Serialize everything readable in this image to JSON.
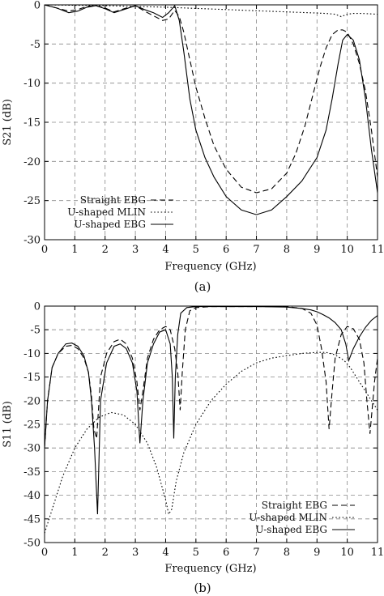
{
  "chart_data": [
    {
      "type": "line",
      "caption": "(a)",
      "xlabel": "Frequency (GHz)",
      "ylabel": "S21 (dB)",
      "xlim": [
        0,
        11
      ],
      "ylim": [
        -30,
        0
      ],
      "xticks": [
        0,
        1,
        2,
        3,
        4,
        5,
        6,
        7,
        8,
        9,
        10,
        11
      ],
      "xtick_labels": [
        "0",
        "1",
        "2",
        "3",
        "4",
        "5",
        "6",
        "7",
        "8",
        "9",
        "10",
        "11"
      ],
      "yticks": [
        0,
        -5,
        -10,
        -15,
        -20,
        -25,
        -30
      ],
      "ytick_labels": [
        "0",
        "-5",
        "-10",
        "-15",
        "-20",
        "-25",
        "-30"
      ],
      "grid": true,
      "legend_position": "bottom-left",
      "series": [
        {
          "name": "Straight EBG",
          "line_style": "dashed",
          "x": [
            0,
            0.4,
            0.8,
            1.1,
            1.4,
            1.7,
            2.0,
            2.3,
            2.7,
            3.0,
            3.3,
            3.6,
            3.9,
            4.1,
            4.3,
            4.45,
            4.6,
            4.8,
            5.0,
            5.3,
            5.6,
            6.0,
            6.5,
            7.0,
            7.5,
            8.0,
            8.3,
            8.6,
            8.9,
            9.1,
            9.3,
            9.5,
            9.7,
            9.85,
            10.0,
            10.2,
            10.4,
            10.6,
            10.8,
            11.0
          ],
          "y": [
            0,
            -0.4,
            -0.8,
            -0.6,
            -0.2,
            -0.1,
            -0.4,
            -0.9,
            -0.4,
            -0.1,
            -0.8,
            -1.4,
            -2.0,
            -1.8,
            -0.7,
            -1.5,
            -3.5,
            -7.0,
            -10.5,
            -14.5,
            -18.0,
            -21.0,
            -23.3,
            -24.0,
            -23.5,
            -21.5,
            -19.0,
            -15.5,
            -11.0,
            -8.0,
            -5.5,
            -3.8,
            -3.2,
            -3.2,
            -3.5,
            -5.0,
            -7.5,
            -11.0,
            -16.0,
            -22.0
          ]
        },
        {
          "name": "U-shaped MLIN",
          "line_style": "dotted",
          "x": [
            0,
            1,
            2,
            3,
            4,
            5,
            6,
            7,
            8,
            9,
            9.3,
            9.6,
            9.8,
            10.0,
            10.2,
            10.5,
            11.0
          ],
          "y": [
            0,
            -0.05,
            -0.1,
            -0.2,
            -0.3,
            -0.45,
            -0.6,
            -0.75,
            -0.9,
            -1.05,
            -1.1,
            -1.2,
            -1.5,
            -1.2,
            -1.1,
            -1.1,
            -1.2
          ]
        },
        {
          "name": "U-shaped EBG",
          "line_style": "solid",
          "x": [
            0,
            0.4,
            0.8,
            1.1,
            1.4,
            1.7,
            2.0,
            2.3,
            2.7,
            3.0,
            3.3,
            3.6,
            3.9,
            4.1,
            4.3,
            4.45,
            4.6,
            4.8,
            5.0,
            5.3,
            5.6,
            6.0,
            6.5,
            7.0,
            7.5,
            8.0,
            8.5,
            9.0,
            9.3,
            9.5,
            9.7,
            9.85,
            10.0,
            10.2,
            10.4,
            10.6,
            10.8,
            11.0
          ],
          "y": [
            0,
            -0.4,
            -1.0,
            -0.8,
            -0.3,
            -0.1,
            -0.5,
            -1.0,
            -0.5,
            -0.1,
            -0.6,
            -1.0,
            -1.6,
            -1.0,
            -0.1,
            -2.0,
            -6.0,
            -12.0,
            -16.0,
            -19.5,
            -22.0,
            -24.5,
            -26.2,
            -26.8,
            -26.2,
            -24.5,
            -22.5,
            -19.5,
            -16.0,
            -12.0,
            -7.5,
            -4.5,
            -3.8,
            -4.5,
            -7.0,
            -12.0,
            -18.5,
            -24.0
          ]
        }
      ]
    },
    {
      "type": "line",
      "caption": "(b)",
      "xlabel": "Frequency (GHz)",
      "ylabel": "S11 (dB)",
      "xlim": [
        0,
        11
      ],
      "ylim": [
        -50,
        0
      ],
      "xticks": [
        0,
        1,
        2,
        3,
        4,
        5,
        6,
        7,
        8,
        9,
        10,
        11
      ],
      "xtick_labels": [
        "0",
        "1",
        "2",
        "3",
        "4",
        "5",
        "6",
        "7",
        "8",
        "9",
        "10",
        "11"
      ],
      "yticks": [
        0,
        -5,
        -10,
        -15,
        -20,
        -25,
        -30,
        -35,
        -40,
        -45,
        -50
      ],
      "ytick_labels": [
        "0",
        "-5",
        "-10",
        "-15",
        "-20",
        "-25",
        "-30",
        "-35",
        "-40",
        "-45",
        "-50"
      ],
      "grid": true,
      "legend_position": "bottom-right",
      "series": [
        {
          "name": "Straight EBG",
          "line_style": "dashed",
          "x": [
            0,
            0.1,
            0.25,
            0.45,
            0.7,
            0.9,
            1.1,
            1.3,
            1.45,
            1.55,
            1.63,
            1.72,
            1.85,
            2.05,
            2.3,
            2.5,
            2.7,
            2.9,
            3.05,
            3.15,
            3.25,
            3.4,
            3.6,
            3.8,
            4.0,
            4.15,
            4.3,
            4.4,
            4.48,
            4.55,
            4.65,
            4.8,
            5.0,
            5.5,
            6.0,
            7.0,
            8.0,
            8.5,
            8.8,
            9.0,
            9.15,
            9.3,
            9.4,
            9.5,
            9.6,
            9.8,
            10.0,
            10.2,
            10.4,
            10.55,
            10.65,
            10.75,
            10.9,
            11.0
          ],
          "y": [
            -30,
            -20,
            -13,
            -10,
            -8.5,
            -8.3,
            -9,
            -11,
            -14,
            -19,
            -26,
            -28,
            -15,
            -10,
            -7.5,
            -7,
            -8,
            -11,
            -16,
            -22,
            -18,
            -11,
            -7,
            -5,
            -4.3,
            -5,
            -9,
            -14,
            -22,
            -14,
            -5,
            -1,
            -0.3,
            -0.1,
            -0.1,
            -0.1,
            -0.1,
            -0.5,
            -1.5,
            -4,
            -9,
            -16,
            -26,
            -18,
            -11,
            -6,
            -4.3,
            -4.8,
            -7,
            -12,
            -20,
            -27,
            -16,
            -11
          ]
        },
        {
          "name": "U-shaped MLIN",
          "line_style": "dotted",
          "x": [
            0,
            0.3,
            0.6,
            1.0,
            1.4,
            1.8,
            2.2,
            2.6,
            3.0,
            3.4,
            3.7,
            4.0,
            4.1,
            4.2,
            4.35,
            4.6,
            5.0,
            5.5,
            6.0,
            6.5,
            7.0,
            7.5,
            8.0,
            8.5,
            9.0,
            9.3,
            9.6,
            9.9,
            10.1,
            10.3,
            10.5,
            10.7,
            10.9,
            11.0
          ],
          "y": [
            -48,
            -42,
            -36,
            -30,
            -26,
            -23.5,
            -22.5,
            -23,
            -25,
            -29,
            -34,
            -41,
            -44,
            -43,
            -37,
            -31,
            -25,
            -20,
            -16.5,
            -13.8,
            -12,
            -11,
            -10.5,
            -10,
            -9.8,
            -9.8,
            -10.3,
            -11.5,
            -13,
            -15,
            -17,
            -19,
            -21,
            -22
          ]
        },
        {
          "name": "U-shaped EBG",
          "line_style": "solid",
          "x": [
            0,
            0.1,
            0.25,
            0.45,
            0.7,
            0.9,
            1.1,
            1.3,
            1.45,
            1.55,
            1.65,
            1.75,
            1.85,
            2.05,
            2.3,
            2.5,
            2.7,
            2.9,
            3.05,
            3.15,
            3.25,
            3.4,
            3.6,
            3.8,
            4.0,
            4.15,
            4.22,
            4.27,
            4.32,
            4.4,
            4.5,
            4.7,
            5.0,
            5.5,
            6.0,
            7.0,
            8.0,
            8.5,
            8.8,
            9.0,
            9.2,
            9.4,
            9.6,
            9.8,
            9.95,
            10.05,
            10.2,
            10.4,
            10.6,
            10.8,
            11.0
          ],
          "y": [
            -30,
            -20,
            -13,
            -10,
            -8,
            -7.8,
            -8.5,
            -10.5,
            -14,
            -20,
            -30,
            -44,
            -20,
            -12,
            -8.5,
            -8,
            -9,
            -12,
            -18,
            -29,
            -20,
            -12,
            -8,
            -5.5,
            -5,
            -8,
            -15,
            -28,
            -15,
            -6,
            -1.5,
            -0.3,
            -0.1,
            -0.1,
            -0.1,
            -0.1,
            -0.2,
            -0.5,
            -0.8,
            -1.2,
            -1.8,
            -2.5,
            -3.5,
            -5,
            -8,
            -11.5,
            -9,
            -6.5,
            -4.5,
            -3,
            -2
          ]
        }
      ]
    }
  ]
}
